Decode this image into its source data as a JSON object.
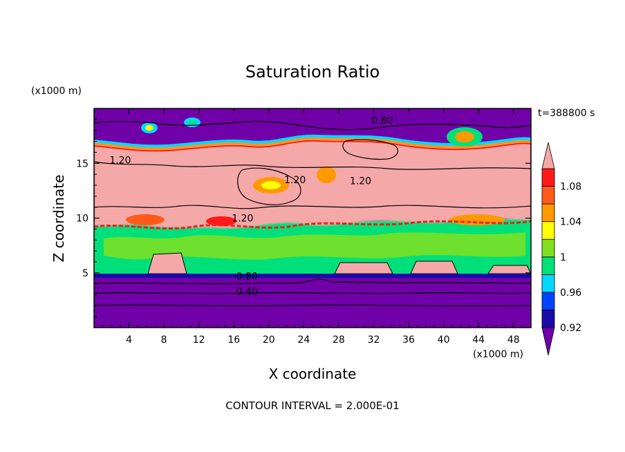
{
  "chart_data": {
    "type": "heatmap",
    "title": "Saturation Ratio",
    "xlabel": "X coordinate",
    "ylabel": "Z coordinate",
    "x_unit": "(x1000 m)",
    "y_unit": "(x1000 m)",
    "time_label": "t=388800 s",
    "contour_interval_text": "CONTOUR INTERVAL = 2.000E-01",
    "xlim": [
      0,
      50
    ],
    "ylim": [
      0,
      20
    ],
    "x_ticks": [
      4,
      8,
      12,
      16,
      20,
      24,
      28,
      32,
      36,
      40,
      44,
      48
    ],
    "y_ticks": [
      5,
      10,
      15
    ],
    "contour_labels": [
      {
        "text": "0.80",
        "x": 33.0,
        "z": 18.6
      },
      {
        "text": "1.20",
        "x": 3.0,
        "z": 15.0
      },
      {
        "text": "1.20",
        "x": 23.0,
        "z": 13.2
      },
      {
        "text": "1.20",
        "x": 30.5,
        "z": 13.1
      },
      {
        "text": "1.20",
        "x": 17.0,
        "z": 9.7
      },
      {
        "text": "0.80",
        "x": 17.5,
        "z": 4.4
      },
      {
        "text": "0.40",
        "x": 17.5,
        "z": 3.0
      }
    ],
    "colorbar": {
      "levels": [
        0.92,
        0.94,
        0.96,
        0.98,
        1.0,
        1.02,
        1.04,
        1.06,
        1.08,
        1.1
      ],
      "labels": [
        "0.92",
        "0.96",
        "1",
        "1.04",
        "1.08"
      ],
      "label_values": [
        0.92,
        0.96,
        1.0,
        1.04,
        1.08
      ],
      "colors": [
        "#7000a8",
        "#1a0aa8",
        "#0044ff",
        "#00d8ff",
        "#00e07a",
        "#80e020",
        "#ffff00",
        "#ff9900",
        "#ff5a1a",
        "#ff1a1a",
        "#f5a8a8"
      ]
    }
  }
}
